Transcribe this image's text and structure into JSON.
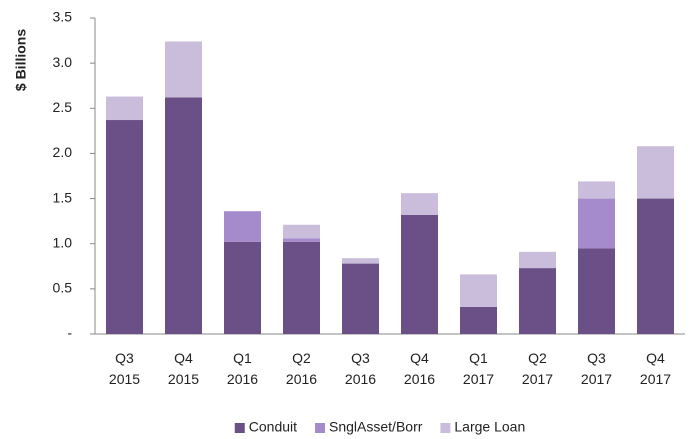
{
  "chart_data": {
    "type": "stacked_bar",
    "y_label": "$ Billions",
    "categories": [
      "Q3 2015",
      "Q4 2015",
      "Q1 2016",
      "Q2 2016",
      "Q3 2016",
      "Q4 2016",
      "Q1 2017",
      "Q2 2017",
      "Q3 2017",
      "Q4 2017"
    ],
    "series": [
      {
        "name": "Conduit",
        "color": "#6b5088",
        "values": [
          2.37,
          2.62,
          1.02,
          1.02,
          0.78,
          1.32,
          0.3,
          0.73,
          0.95,
          1.5
        ]
      },
      {
        "name": "SnglAsset/Borr",
        "color": "#a58bcc",
        "values": [
          0,
          0,
          0.34,
          0.04,
          0,
          0,
          0,
          0,
          0.55,
          0
        ]
      },
      {
        "name": "Large Loan",
        "color": "#c9bddb",
        "values": [
          0.26,
          0.62,
          0,
          0.15,
          0.06,
          0.24,
          0.36,
          0.18,
          0.19,
          0.58
        ]
      }
    ],
    "ylim": [
      0,
      3.5
    ],
    "yticks": [
      {
        "value": 0,
        "label": "-"
      },
      0.5,
      {
        "value": 1,
        "label": "1.0"
      },
      1.5,
      {
        "value": 2,
        "label": "2.0"
      },
      2.5,
      {
        "value": 3,
        "label": "3.0"
      },
      3.5
    ],
    "legend": "bottom"
  }
}
